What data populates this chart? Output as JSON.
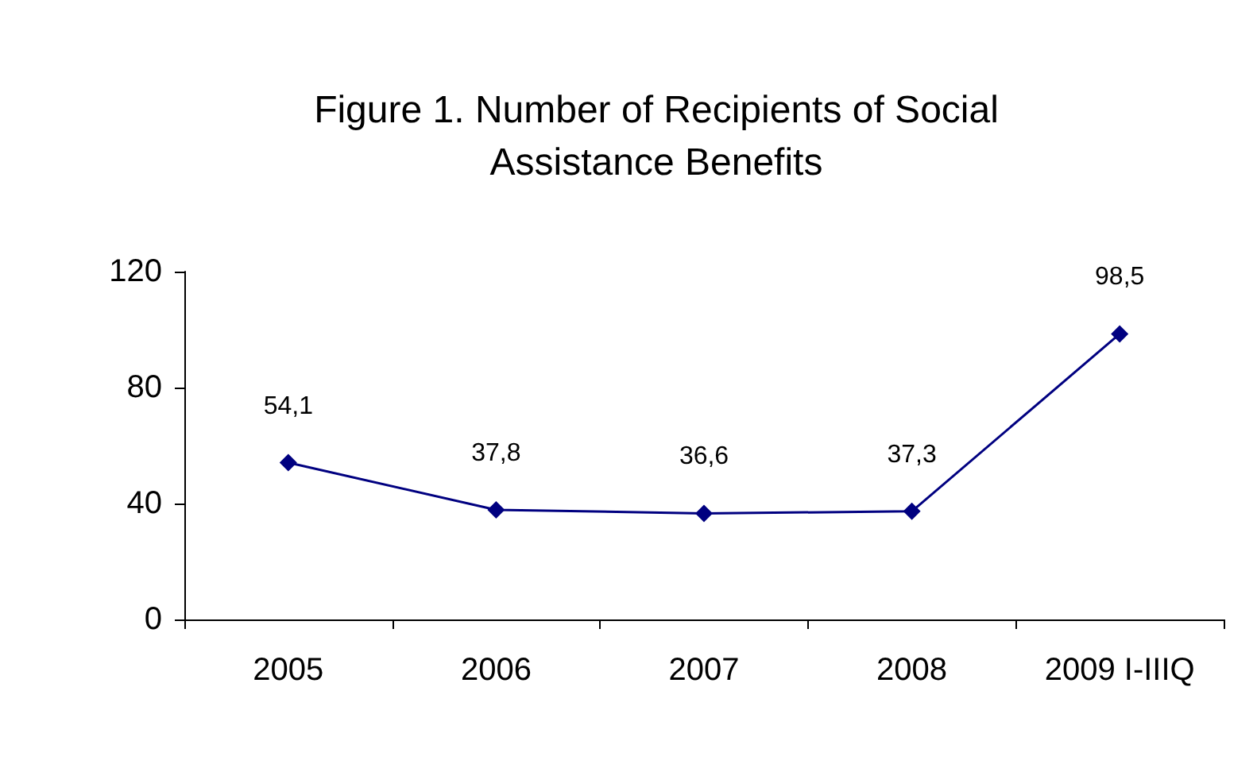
{
  "chart_data": {
    "type": "line",
    "title": "Figure 1. Number of Recipients of Social\nAssistance Benefits",
    "categories": [
      "2005",
      "2006",
      "2007",
      "2008",
      "2009 I-IIIQ"
    ],
    "series": [
      {
        "color": "#000080",
        "values": [
          54.1,
          37.8,
          36.6,
          37.3,
          98.5
        ],
        "value_labels": [
          "54,1",
          "37,8",
          "36,6",
          "37,3",
          "98,5"
        ]
      }
    ],
    "ylim": [
      0,
      120
    ],
    "yticks": [
      0,
      40,
      80,
      120
    ],
    "grid": false,
    "marker": "diamond",
    "line_style": "solid"
  }
}
